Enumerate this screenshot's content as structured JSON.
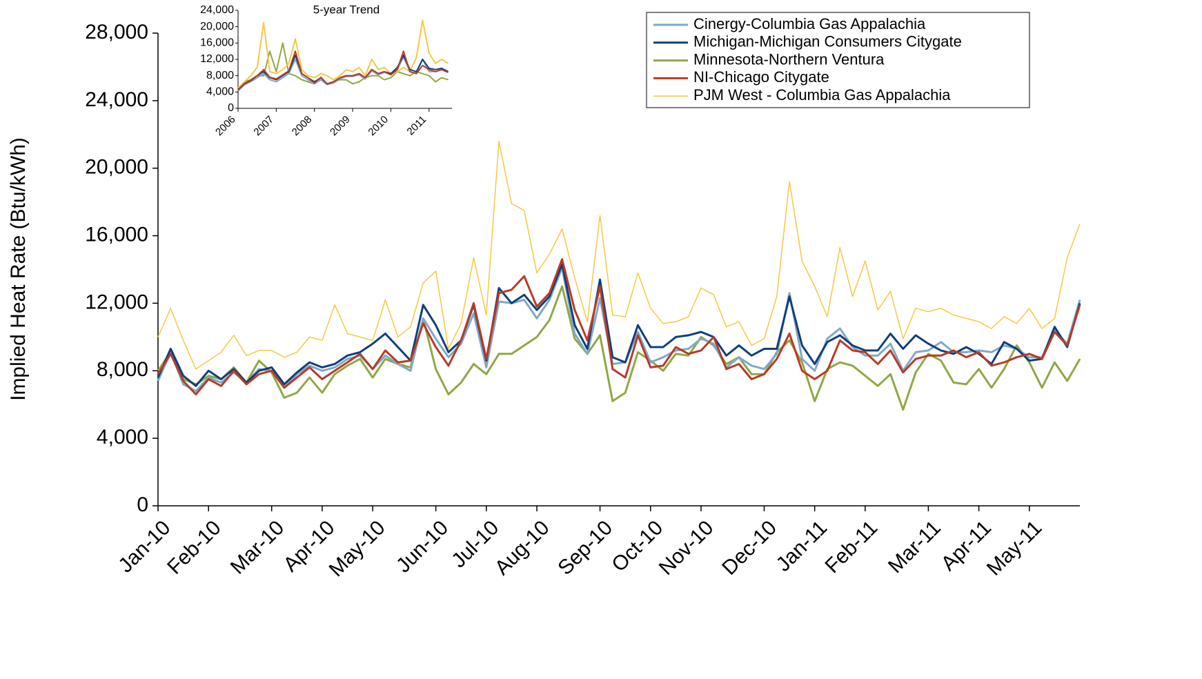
{
  "chart_data": [
    {
      "type": "line",
      "y_label": "Implied Heat Rate (Btu/kWh)",
      "categories": [
        "Jan-10",
        null,
        null,
        null,
        "Feb-10",
        null,
        null,
        null,
        null,
        "Mar-10",
        null,
        null,
        null,
        "Apr-10",
        null,
        null,
        null,
        "May-10",
        null,
        null,
        null,
        null,
        "Jun-10",
        null,
        null,
        null,
        "Jul-10",
        null,
        null,
        null,
        "Aug-10",
        null,
        null,
        null,
        null,
        "Sep-10",
        null,
        null,
        null,
        "Oct-10",
        null,
        null,
        null,
        "Nov-10",
        null,
        null,
        null,
        null,
        "Dec-10",
        null,
        null,
        null,
        "Jan-11",
        null,
        null,
        null,
        "Feb-11",
        null,
        null,
        null,
        null,
        "Mar-11",
        null,
        null,
        null,
        "Apr-11",
        null,
        null,
        null,
        "May-11",
        null,
        null,
        null,
        null
      ],
      "ylim": [
        0,
        28000
      ],
      "yticks": [
        0,
        {
          "value": 4000,
          "label": "4,000"
        },
        {
          "value": 8000,
          "label": "8,000"
        },
        {
          "value": 12000,
          "label": "12,000"
        },
        {
          "value": 16000,
          "label": "16,000"
        },
        {
          "value": 20000,
          "label": "20,000"
        },
        {
          "value": 24000,
          "label": "24,000"
        },
        {
          "value": 28000,
          "label": "28,000"
        }
      ],
      "legend": "upper right",
      "series": [
        {
          "name": "Cinergy-Columbia Gas Appalachia",
          "color": "#7fa9c9",
          "values": [
            7400,
            9100,
            7200,
            6800,
            7600,
            7300,
            7900,
            7300,
            8100,
            8000,
            7000,
            7800,
            8300,
            8000,
            8200,
            8700,
            8900,
            8100,
            8900,
            8400,
            8000,
            11100,
            9900,
            8800,
            9600,
            11400,
            8200,
            12100,
            12000,
            12200,
            11100,
            12200,
            14100,
            10200,
            9000,
            12300,
            8400,
            8500,
            10300,
            8500,
            8800,
            9200,
            9300,
            9900,
            9600,
            8200,
            8800,
            8300,
            8100,
            9000,
            12600,
            8700,
            8000,
            9900,
            10500,
            9400,
            8900,
            8900,
            9600,
            8000,
            9100,
            9200,
            9700,
            9100,
            9100,
            9200,
            9100,
            9500,
            9300,
            8800,
            8800,
            10400,
            9600,
            12200
          ]
        },
        {
          "name": "Michigan-Michigan Consumers Citygate",
          "color": "#0e3f7a",
          "values": [
            7600,
            9300,
            7700,
            7100,
            8000,
            7500,
            8100,
            7300,
            8000,
            8200,
            7200,
            7900,
            8500,
            8200,
            8400,
            8900,
            9100,
            9600,
            10200,
            9400,
            8600,
            11900,
            10700,
            9100,
            9800,
            11900,
            8600,
            12900,
            12000,
            12500,
            11600,
            12400,
            14300,
            10700,
            9300,
            13400,
            8800,
            8500,
            10700,
            9400,
            9400,
            10000,
            10100,
            10300,
            10000,
            8900,
            9500,
            8900,
            9300,
            9300,
            12400,
            9500,
            8400,
            9700,
            10100,
            9500,
            9200,
            9200,
            10200,
            9300,
            10100,
            9600,
            9200,
            9000,
            9400,
            9000,
            8400,
            9700,
            9300,
            8600,
            8700,
            10600,
            9400,
            12000
          ]
        },
        {
          "name": "Minnesota-Northern Ventura",
          "color": "#8fa845",
          "values": [
            8000,
            9100,
            7500,
            7200,
            7700,
            7500,
            8200,
            7300,
            8600,
            7900,
            6400,
            6700,
            7600,
            6700,
            7800,
            8300,
            8700,
            7600,
            8700,
            8400,
            8200,
            11100,
            8100,
            6600,
            7300,
            8400,
            7800,
            9000,
            9000,
            9500,
            10000,
            11000,
            13000,
            9900,
            9000,
            10100,
            6200,
            6700,
            9100,
            8600,
            8000,
            9000,
            8900,
            10000,
            9500,
            8400,
            8800,
            7800,
            7800,
            9100,
            9800,
            8500,
            6200,
            8100,
            8500,
            8300,
            7700,
            7100,
            7800,
            5700,
            7900,
            9000,
            8600,
            7300,
            7200,
            8100,
            7000,
            8100,
            9500,
            8500,
            7000,
            8500,
            7400,
            8700
          ]
        },
        {
          "name": "NI-Chicago Citygate",
          "color": "#b93a26",
          "values": [
            7800,
            9000,
            7400,
            6600,
            7500,
            7100,
            8000,
            7200,
            7800,
            8000,
            7000,
            7600,
            8200,
            7500,
            8000,
            8500,
            9000,
            8100,
            9200,
            8500,
            8600,
            10800,
            9400,
            8300,
            9800,
            12000,
            8700,
            12600,
            12800,
            13600,
            11800,
            12600,
            14600,
            11600,
            9800,
            13000,
            8100,
            7600,
            10100,
            8200,
            8300,
            9400,
            9000,
            9200,
            10000,
            8100,
            8400,
            7500,
            7800,
            8700,
            10200,
            8000,
            7500,
            8000,
            9800,
            9200,
            9100,
            8400,
            9200,
            7900,
            8700,
            8900,
            8900,
            9200,
            8800,
            9100,
            8300,
            8500,
            8800,
            9000,
            8700,
            10300,
            9500,
            11900
          ]
        },
        {
          "name": "PJM West - Columbia Gas Appalachia",
          "color": "#f5c842",
          "values": [
            10000,
            11700,
            9800,
            8100,
            8600,
            9100,
            10100,
            8900,
            9200,
            9200,
            8800,
            9100,
            10000,
            9800,
            11900,
            10200,
            10000,
            9800,
            12200,
            10000,
            10600,
            13200,
            13900,
            9300,
            10800,
            14700,
            11300,
            21600,
            17900,
            17500,
            13800,
            14900,
            16400,
            13500,
            10900,
            17200,
            11300,
            11200,
            13800,
            11700,
            10800,
            10900,
            11200,
            12900,
            12500,
            10600,
            10900,
            9500,
            9900,
            12400,
            19200,
            14500,
            13000,
            11200,
            15300,
            12400,
            14500,
            11600,
            12700,
            9900,
            11700,
            11500,
            11700,
            11300,
            11100,
            10900,
            10500,
            11200,
            10800,
            11700,
            10500,
            11100,
            14700,
            16700
          ]
        }
      ]
    },
    {
      "type": "line",
      "title": "5-year Trend",
      "x": [
        2006,
        2006.17,
        2006.33,
        2006.5,
        2006.67,
        2006.83,
        2007,
        2007.17,
        2007.33,
        2007.5,
        2007.67,
        2007.83,
        2008,
        2008.17,
        2008.33,
        2008.5,
        2008.67,
        2008.83,
        2009,
        2009.17,
        2009.33,
        2009.5,
        2009.67,
        2009.83,
        2010,
        2010.17,
        2010.33,
        2010.5,
        2010.67,
        2010.83,
        2011,
        2011.17,
        2011.33,
        2011.5
      ],
      "xlim": [
        2006,
        2011.6
      ],
      "xticks": [
        2006,
        2007,
        2008,
        2009,
        2010,
        2011
      ],
      "ylim": [
        0,
        24000
      ],
      "yticks": [
        0,
        {
          "value": 4000,
          "label": "4,000"
        },
        {
          "value": 8000,
          "label": "8,000"
        },
        {
          "value": 12000,
          "label": "12,000"
        },
        {
          "value": 16000,
          "label": "16,000"
        },
        {
          "value": 20000,
          "label": "20,000"
        },
        {
          "value": 24000,
          "label": "24,000"
        }
      ],
      "series": [
        {
          "color": "#8fa845",
          "values": [
            5000,
            6500,
            7000,
            8000,
            8000,
            14000,
            9000,
            16000,
            8500,
            8000,
            7000,
            6500,
            6000,
            7500,
            6000,
            6500,
            7000,
            7000,
            6000,
            6500,
            7500,
            8000,
            8000,
            7000,
            7500,
            9000,
            8500,
            8000,
            9000,
            8500,
            8000,
            6500,
            7500,
            7000
          ]
        },
        {
          "color": "#f5c842",
          "values": [
            5000,
            6500,
            8000,
            10000,
            21000,
            9000,
            8500,
            9500,
            11000,
            17000,
            9500,
            8000,
            7500,
            8500,
            8000,
            7000,
            8000,
            9500,
            9000,
            10000,
            8000,
            12000,
            9500,
            10000,
            8500,
            9000,
            10000,
            9000,
            12500,
            21600,
            13500,
            11000,
            12000,
            11000
          ]
        },
        {
          "color": "#7fa9c9",
          "values": [
            4300,
            5800,
            6500,
            7500,
            8500,
            7000,
            6500,
            7500,
            8500,
            12000,
            8000,
            7000,
            6000,
            7000,
            5800,
            6200,
            7200,
            7800,
            7800,
            8200,
            7200,
            9200,
            8200,
            8800,
            8300,
            9500,
            12500,
            9000,
            8500,
            12000,
            9000,
            9000,
            9500,
            8800
          ]
        },
        {
          "color": "#0e3f7a",
          "values": [
            4500,
            6000,
            6800,
            8000,
            9000,
            7500,
            7000,
            8000,
            9000,
            13000,
            8500,
            7500,
            6500,
            7500,
            6000,
            6500,
            7500,
            8000,
            8000,
            8500,
            7500,
            9500,
            8500,
            9000,
            8500,
            10000,
            13000,
            9500,
            9000,
            12000,
            9800,
            9500,
            9800,
            9000
          ]
        },
        {
          "color": "#b93a26",
          "values": [
            4600,
            6100,
            6900,
            8000,
            9500,
            7600,
            7200,
            8200,
            9200,
            14000,
            8500,
            7500,
            6200,
            7600,
            6000,
            6500,
            7500,
            8000,
            8000,
            8500,
            7500,
            9500,
            8500,
            9000,
            8200,
            9500,
            14000,
            9000,
            8500,
            10500,
            9500,
            9000,
            9500,
            8800
          ]
        }
      ]
    }
  ]
}
